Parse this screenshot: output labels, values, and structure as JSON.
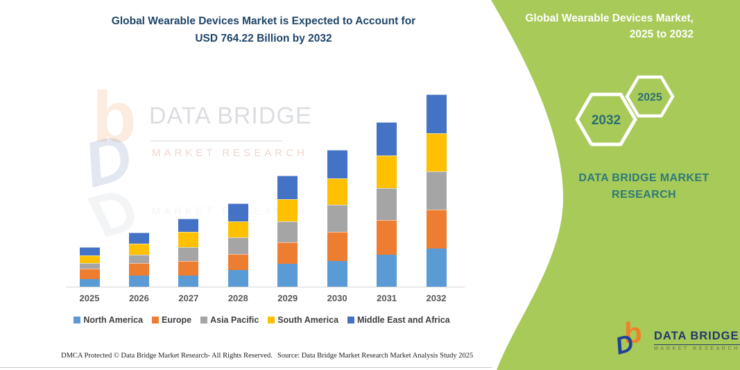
{
  "title": {
    "line1": "Global Wearable Devices Market is Expected to Account for",
    "line2": "USD 764.22 Billion by 2032"
  },
  "side_panel": {
    "heading_line1": "Global Wearable Devices Market,",
    "heading_line2": "2025 to 2032",
    "hexagons": [
      {
        "label": "2032"
      },
      {
        "label": "2025"
      }
    ],
    "brand_line1": "DATA BRIDGE MARKET",
    "brand_line2": "RESEARCH",
    "colors": {
      "panel_green": "#a7ca58",
      "teal_text": "#2e7a78"
    }
  },
  "watermark": {
    "brand": "DATA BRIDGE",
    "sub": "MARKET RESEARCH"
  },
  "logo": {
    "brand": "DATA BRIDGE",
    "sub": "MARKET RESEARCH"
  },
  "footer": {
    "left": "DMCA Protected © Data Bridge Market Research- All Rights Reserved.",
    "right": "Source: Data Bridge Market Research Market Analysis Study 2025"
  },
  "chart_data": {
    "type": "bar",
    "stacked": true,
    "title": "Global Wearable Devices Market is Expected to Account for USD 764.22 Billion by 2032",
    "unit": "USD Billion (values estimated from bar heights; 2032 total = 764.22)",
    "categories": [
      "2025",
      "2026",
      "2027",
      "2028",
      "2029",
      "2030",
      "2031",
      "2032"
    ],
    "series": [
      {
        "name": "North America",
        "color": "#5b9bd5",
        "values": [
          30,
          44,
          44,
          67,
          90,
          101,
          126,
          153
        ]
      },
      {
        "name": "Europe",
        "color": "#ed7d31",
        "values": [
          41,
          50,
          57,
          62,
          86,
          117,
          138,
          153
        ]
      },
      {
        "name": "Asia Pacific",
        "color": "#a5a5a5",
        "values": [
          23,
          32,
          55,
          67,
          82,
          108,
          129,
          152
        ]
      },
      {
        "name": "South America",
        "color": "#ffc000",
        "values": [
          29,
          46,
          63,
          62,
          90,
          105,
          129,
          152
        ]
      },
      {
        "name": "Middle East and Africa",
        "color": "#4472c4",
        "values": [
          35,
          43,
          50,
          72,
          93,
          113,
          133,
          154
        ]
      }
    ],
    "totals": [
      158,
      215,
      269,
      330,
      441,
      544,
      655,
      764
    ],
    "xlabel": "",
    "ylabel": "",
    "grid": false,
    "legend_position": "bottom"
  }
}
